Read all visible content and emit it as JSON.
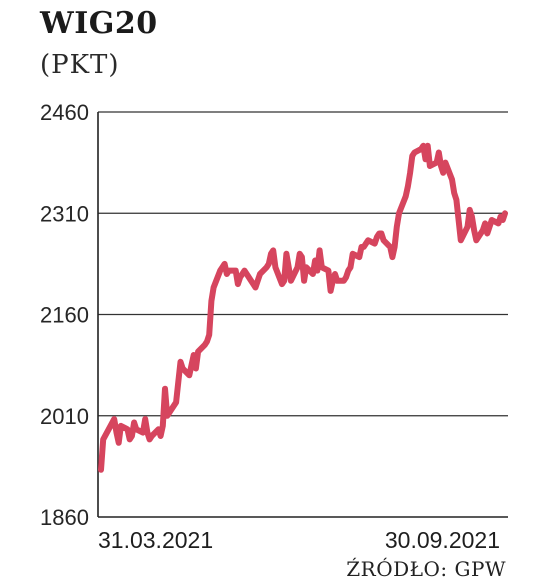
{
  "chart_data": {
    "type": "line",
    "title": "WIG20",
    "subtitle": "(PKT)",
    "source": "ŹRÓDŁO: GPW",
    "ylim": [
      1860,
      2460
    ],
    "yticks": [
      "2460",
      "2310",
      "2160",
      "2010",
      "1860"
    ],
    "xtick_labels": [
      "31.03.2021",
      "30.09.2021"
    ],
    "grid": true,
    "line_color": "#d6455e",
    "x": [
      "2021-03-31",
      "2021-04-01",
      "2021-04-06",
      "2021-04-07",
      "2021-04-08",
      "2021-04-09",
      "2021-04-12",
      "2021-04-13",
      "2021-04-14",
      "2021-04-15",
      "2021-04-16",
      "2021-04-19",
      "2021-04-20",
      "2021-04-21",
      "2021-04-22",
      "2021-04-23",
      "2021-04-26",
      "2021-04-27",
      "2021-04-28",
      "2021-04-29",
      "2021-04-30",
      "2021-05-04",
      "2021-05-05",
      "2021-05-06",
      "2021-05-07",
      "2021-05-10",
      "2021-05-11",
      "2021-05-12",
      "2021-05-13",
      "2021-05-14",
      "2021-05-17",
      "2021-05-18",
      "2021-05-19",
      "2021-05-20",
      "2021-05-21",
      "2021-05-24",
      "2021-05-25",
      "2021-05-26",
      "2021-05-27",
      "2021-05-28",
      "2021-05-31",
      "2021-06-01",
      "2021-06-02",
      "2021-06-04",
      "2021-06-07",
      "2021-06-08",
      "2021-06-09",
      "2021-06-10",
      "2021-06-11",
      "2021-06-14",
      "2021-06-15",
      "2021-06-16",
      "2021-06-17",
      "2021-06-18",
      "2021-06-21",
      "2021-06-22",
      "2021-06-23",
      "2021-06-24",
      "2021-06-25",
      "2021-06-28",
      "2021-06-29",
      "2021-06-30",
      "2021-07-01",
      "2021-07-02",
      "2021-07-05",
      "2021-07-06",
      "2021-07-07",
      "2021-07-08",
      "2021-07-09",
      "2021-07-12",
      "2021-07-13",
      "2021-07-14",
      "2021-07-15",
      "2021-07-16",
      "2021-07-19",
      "2021-07-20",
      "2021-07-21",
      "2021-07-22",
      "2021-07-23",
      "2021-07-26",
      "2021-07-27",
      "2021-07-28",
      "2021-07-29",
      "2021-07-30",
      "2021-08-02",
      "2021-08-03",
      "2021-08-04",
      "2021-08-05",
      "2021-08-06",
      "2021-08-09",
      "2021-08-10",
      "2021-08-11",
      "2021-08-12",
      "2021-08-13",
      "2021-08-16",
      "2021-08-17",
      "2021-08-18",
      "2021-08-19",
      "2021-08-20",
      "2021-08-23",
      "2021-08-24",
      "2021-08-25",
      "2021-08-26",
      "2021-08-27",
      "2021-08-30",
      "2021-08-31",
      "2021-09-01",
      "2021-09-02",
      "2021-09-03",
      "2021-09-06",
      "2021-09-07",
      "2021-09-08",
      "2021-09-09",
      "2021-09-10",
      "2021-09-13",
      "2021-09-14",
      "2021-09-15",
      "2021-09-16",
      "2021-09-17",
      "2021-09-20",
      "2021-09-21",
      "2021-09-22",
      "2021-09-23",
      "2021-09-24",
      "2021-09-27",
      "2021-09-28",
      "2021-09-29",
      "2021-09-30"
    ],
    "series": [
      {
        "values": [
          1930,
          1975,
          2005,
          1985,
          1970,
          1995,
          1990,
          1975,
          1980,
          2000,
          1990,
          1985,
          2005,
          1985,
          1975,
          1980,
          1990,
          1980,
          1995,
          2050,
          2010,
          2030,
          2060,
          2090,
          2080,
          2070,
          2085,
          2100,
          2080,
          2105,
          2115,
          2120,
          2130,
          2180,
          2200,
          2225,
          2230,
          2235,
          2220,
          2225,
          2225,
          2205,
          2215,
          2225,
          2210,
          2205,
          2200,
          2210,
          2220,
          2230,
          2235,
          2250,
          2255,
          2230,
          2205,
          2210,
          2250,
          2230,
          2210,
          2230,
          2250,
          2245,
          2210,
          2230,
          2220,
          2240,
          2225,
          2255,
          2230,
          2225,
          2195,
          2210,
          2220,
          2210,
          2210,
          2215,
          2225,
          2230,
          2250,
          2245,
          2260,
          2260,
          2265,
          2270,
          2265,
          2275,
          2280,
          2280,
          2270,
          2260,
          2245,
          2260,
          2290,
          2310,
          2335,
          2350,
          2370,
          2395,
          2400,
          2405,
          2410,
          2390,
          2410,
          2380,
          2385,
          2400,
          2380,
          2370,
          2385,
          2360,
          2340,
          2330,
          2300,
          2270,
          2290,
          2315,
          2305,
          2285,
          2270,
          2285,
          2295,
          2280,
          2290,
          2300,
          2295,
          2305,
          2300,
          2310
        ]
      }
    ]
  }
}
